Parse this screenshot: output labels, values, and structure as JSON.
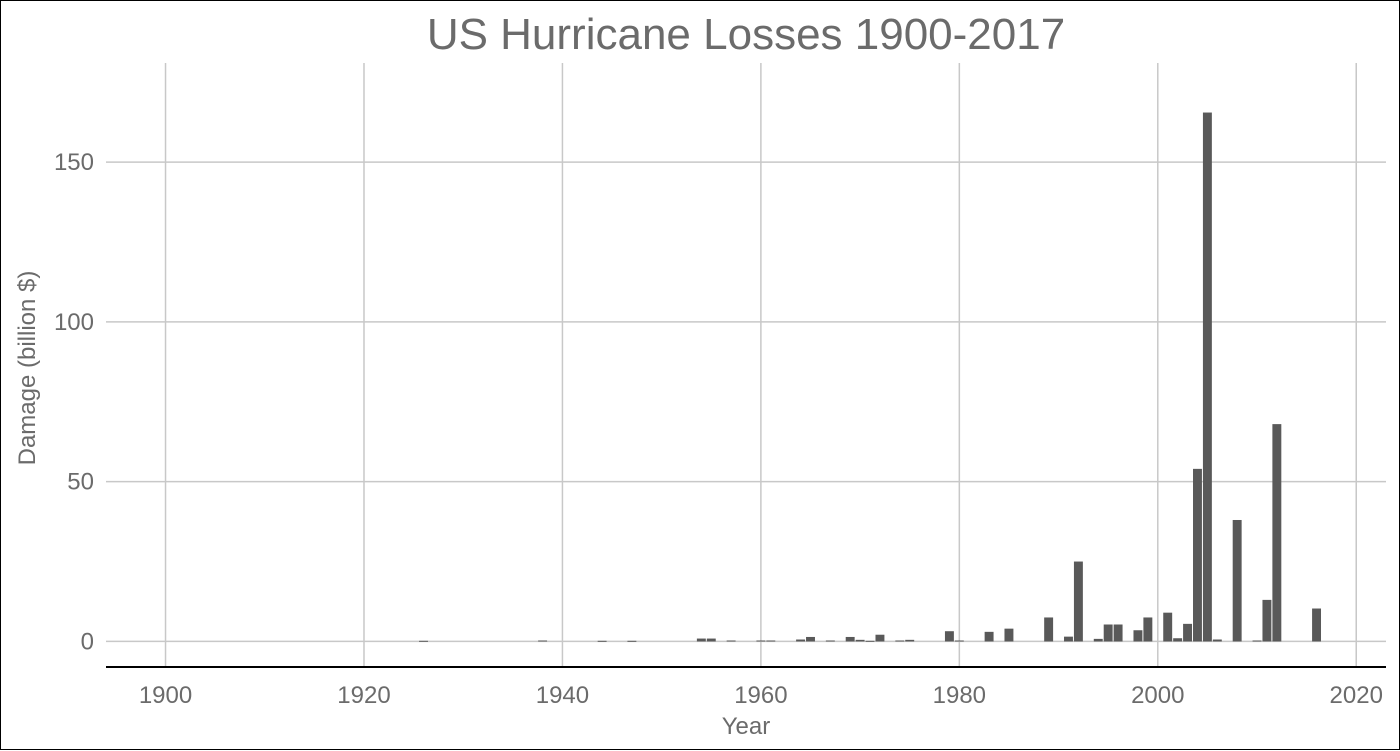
{
  "chart_data": {
    "type": "bar",
    "title": "US Hurricane Losses 1900-2017",
    "xlabel": "Year",
    "ylabel": "Damage (billion $)",
    "xlim": [
      1894,
      2023
    ],
    "ylim": [
      -8,
      181
    ],
    "x_ticks": [
      1900,
      1920,
      1940,
      1960,
      1980,
      2000,
      2020
    ],
    "y_ticks": [
      0,
      50,
      100,
      150
    ],
    "grid": true,
    "legend": "none",
    "bar_color": "#595959",
    "x": [
      1926,
      1938,
      1944,
      1947,
      1954,
      1955,
      1957,
      1960,
      1961,
      1964,
      1965,
      1967,
      1969,
      1970,
      1971,
      1972,
      1974,
      1975,
      1979,
      1980,
      1983,
      1985,
      1989,
      1991,
      1992,
      1994,
      1995,
      1996,
      1998,
      1999,
      2001,
      2002,
      2003,
      2004,
      2005,
      2006,
      2008,
      2010,
      2011,
      2012,
      2016
    ],
    "values": [
      0.2,
      0.3,
      0.2,
      0.2,
      0.9,
      0.9,
      0.3,
      0.3,
      0.3,
      0.6,
      1.4,
      0.3,
      1.4,
      0.5,
      0.2,
      2.1,
      0.3,
      0.5,
      3.2,
      0.3,
      3.0,
      4.0,
      7.5,
      1.5,
      25.0,
      0.8,
      5.3,
      5.3,
      3.5,
      7.5,
      9.0,
      1.0,
      5.5,
      54.0,
      165.5,
      0.6,
      38.0,
      0.3,
      13.0,
      68.0,
      10.3
    ]
  }
}
